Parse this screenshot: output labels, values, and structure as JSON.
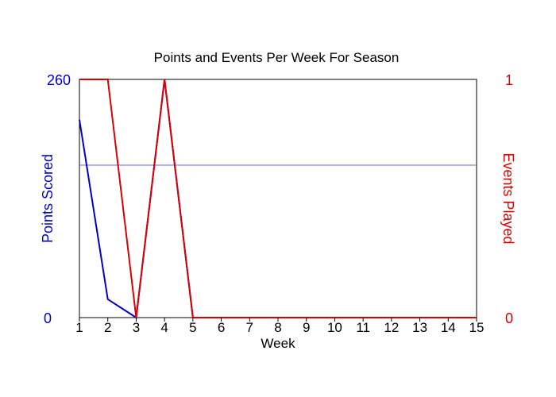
{
  "chart_data": {
    "type": "line",
    "title": "Points and Events Per Week For Season",
    "xlabel": "Week",
    "x": [
      1,
      2,
      3,
      4,
      5,
      6,
      7,
      8,
      9,
      10,
      11,
      12,
      13,
      14,
      15
    ],
    "xlim": [
      1,
      15
    ],
    "series": [
      {
        "name": "Points Scored",
        "axis": "left",
        "color": "#0000cc",
        "values": [
          216,
          20,
          0,
          260,
          0,
          0,
          0,
          0,
          0,
          0,
          0,
          0,
          0,
          0,
          0
        ]
      },
      {
        "name": "Events Played",
        "axis": "right",
        "color": "#dd0000",
        "values": [
          1,
          1,
          0,
          1,
          0,
          0,
          0,
          0,
          0,
          0,
          0,
          0,
          0,
          0,
          0
        ]
      }
    ],
    "y_left": {
      "label": "Points Scored",
      "ticks": [
        "0",
        "260"
      ],
      "ylim": [
        0,
        260
      ],
      "color": "#0000cc"
    },
    "y_right": {
      "label": "Events Played",
      "ticks": [
        "0",
        "1"
      ],
      "ylim": [
        0,
        1
      ],
      "color": "#dd0000"
    },
    "reference_line": {
      "value": 0.64,
      "axis": "right",
      "color": "#6a6ad0"
    },
    "grid": false
  }
}
